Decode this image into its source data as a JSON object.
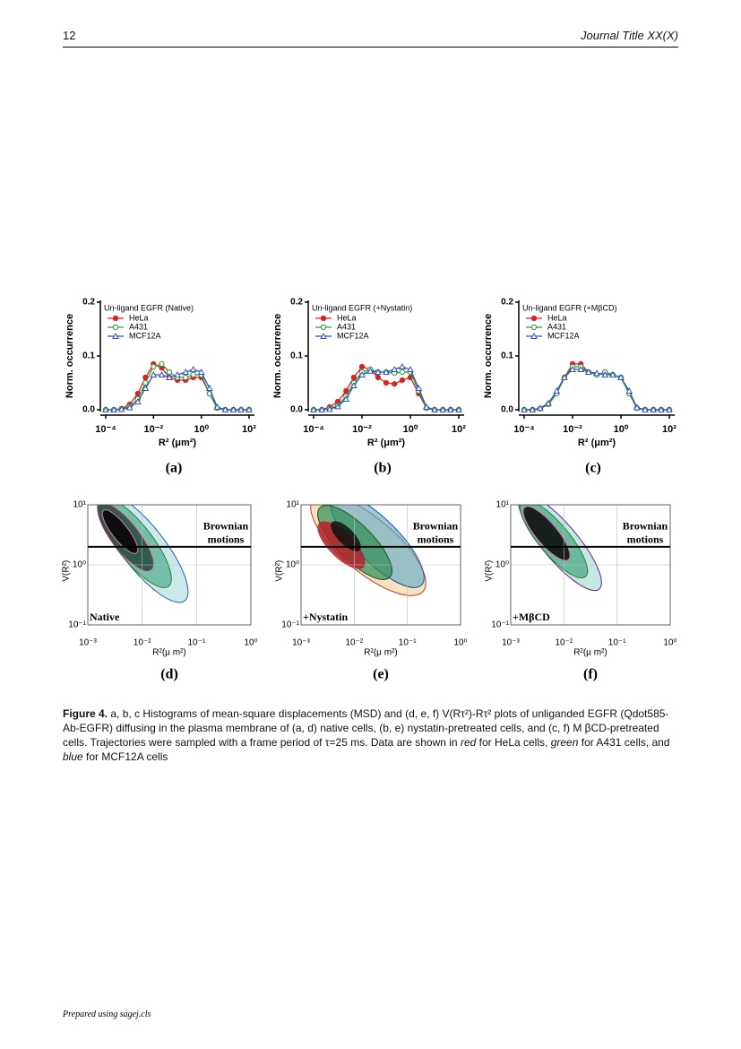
{
  "header": {
    "page": "12",
    "journal": "Journal Title XX(X)"
  },
  "chart_data": [
    {
      "type": "line",
      "panel_label": "(a)",
      "title": "Un-ligand EGFR (Native)",
      "xlabel": "R² (μm²)",
      "ylabel": "Norm. occurrence",
      "log_x": true,
      "legend": "upper left",
      "x": [
        0.0001,
        0.00022,
        0.00046,
        0.001,
        0.0022,
        0.0046,
        0.01,
        0.022,
        0.046,
        0.1,
        0.22,
        0.46,
        1,
        2.2,
        4.6,
        10,
        22,
        46,
        100
      ],
      "xlim": [
        0.0001,
        100
      ],
      "ylim": [
        0,
        0.2
      ],
      "xticks": [
        {
          "value": 0.0001,
          "label": "10⁻⁴"
        },
        {
          "value": 0.01,
          "label": "10⁻²"
        },
        {
          "value": 1,
          "label": "10⁰"
        },
        {
          "value": 100,
          "label": "10²"
        }
      ],
      "yticks": [
        {
          "value": 0,
          "label": "0.0"
        },
        0.1,
        0.2
      ],
      "series": [
        {
          "name": "HeLa",
          "color": "#e02020",
          "values": [
            0,
            0,
            0.002,
            0.01,
            0.03,
            0.06,
            0.085,
            0.078,
            0.06,
            0.055,
            0.055,
            0.06,
            0.06,
            0.03,
            0.003,
            0,
            0,
            0,
            0
          ]
        },
        {
          "name": "A431",
          "color": "#2ca02c",
          "values": [
            0,
            0,
            0.001,
            0.006,
            0.02,
            0.05,
            0.08,
            0.085,
            0.07,
            0.06,
            0.06,
            0.065,
            0.065,
            0.03,
            0.003,
            0,
            0,
            0,
            0
          ]
        },
        {
          "name": "MCF12A",
          "color": "#3050c0",
          "values": [
            0,
            0,
            0.001,
            0.004,
            0.015,
            0.04,
            0.065,
            0.065,
            0.06,
            0.065,
            0.07,
            0.075,
            0.07,
            0.04,
            0.005,
            0,
            0,
            0,
            0
          ]
        }
      ]
    },
    {
      "type": "line",
      "panel_label": "(b)",
      "title": "Un-ligand EGFR (+Nystatin)",
      "xlabel": "R² (μm²)",
      "ylabel": "Norm. occurrence",
      "log_x": true,
      "legend": "upper left",
      "x": [
        0.0001,
        0.00022,
        0.00046,
        0.001,
        0.0022,
        0.0046,
        0.01,
        0.022,
        0.046,
        0.1,
        0.22,
        0.46,
        1,
        2.2,
        4.6,
        10,
        22,
        46,
        100
      ],
      "xlim": [
        0.0001,
        100
      ],
      "ylim": [
        0,
        0.2
      ],
      "xticks": [
        {
          "value": 0.0001,
          "label": "10⁻⁴"
        },
        {
          "value": 0.01,
          "label": "10⁻²"
        },
        {
          "value": 1,
          "label": "10⁰"
        },
        {
          "value": 100,
          "label": "10²"
        }
      ],
      "yticks": [
        {
          "value": 0,
          "label": "0.0"
        },
        0.1,
        0.2
      ],
      "series": [
        {
          "name": "HeLa",
          "color": "#e02020",
          "values": [
            0,
            0,
            0.005,
            0.015,
            0.035,
            0.06,
            0.08,
            0.075,
            0.06,
            0.05,
            0.048,
            0.055,
            0.06,
            0.03,
            0.003,
            0,
            0,
            0,
            0
          ]
        },
        {
          "name": "A431",
          "color": "#2ca02c",
          "values": [
            0,
            0,
            0.002,
            0.008,
            0.025,
            0.05,
            0.07,
            0.075,
            0.07,
            0.07,
            0.068,
            0.07,
            0.07,
            0.035,
            0.003,
            0,
            0,
            0,
            0
          ]
        },
        {
          "name": "MCF12A",
          "color": "#3050c0",
          "values": [
            0,
            0,
            0.001,
            0.006,
            0.02,
            0.045,
            0.065,
            0.072,
            0.07,
            0.07,
            0.075,
            0.08,
            0.075,
            0.04,
            0.005,
            0,
            0,
            0,
            0
          ]
        }
      ]
    },
    {
      "type": "line",
      "panel_label": "(c)",
      "title": "Un-ligand EGFR (+MβCD)",
      "xlabel": "R² (μm²)",
      "ylabel": "Norm. occurrence",
      "log_x": true,
      "legend": "upper left",
      "x": [
        0.0001,
        0.00022,
        0.00046,
        0.001,
        0.0022,
        0.0046,
        0.01,
        0.022,
        0.046,
        0.1,
        0.22,
        0.46,
        1,
        2.2,
        4.6,
        10,
        22,
        46,
        100
      ],
      "xlim": [
        0.0001,
        100
      ],
      "ylim": [
        0,
        0.2
      ],
      "xticks": [
        {
          "value": 0.0001,
          "label": "10⁻⁴"
        },
        {
          "value": 0.01,
          "label": "10⁻²"
        },
        {
          "value": 1,
          "label": "10⁰"
        },
        {
          "value": 100,
          "label": "10²"
        }
      ],
      "yticks": [
        {
          "value": 0,
          "label": "0.0"
        },
        0.1,
        0.2
      ],
      "series": [
        {
          "name": "HeLa",
          "color": "#e02020",
          "values": [
            0,
            0,
            0.002,
            0.01,
            0.03,
            0.06,
            0.085,
            0.085,
            0.07,
            0.065,
            0.07,
            0.065,
            0.06,
            0.03,
            0.003,
            0,
            0,
            0,
            0
          ]
        },
        {
          "name": "A431",
          "color": "#2ca02c",
          "values": [
            0,
            0,
            0.002,
            0.01,
            0.03,
            0.06,
            0.08,
            0.08,
            0.07,
            0.065,
            0.07,
            0.065,
            0.06,
            0.03,
            0.003,
            0,
            0,
            0,
            0
          ]
        },
        {
          "name": "MCF12A",
          "color": "#3050c0",
          "values": [
            0,
            0,
            0.003,
            0.012,
            0.035,
            0.06,
            0.075,
            0.075,
            0.07,
            0.068,
            0.065,
            0.065,
            0.06,
            0.035,
            0.004,
            0,
            0,
            0,
            0
          ]
        }
      ]
    },
    {
      "type": "contour",
      "panel_label": "(d)",
      "condition": "Native",
      "annotation": [
        "Brownian",
        "motions"
      ],
      "xlabel": "R²(μ m²)",
      "ylabel": "V(R²)",
      "log_x": true,
      "log_y": true,
      "grid": true,
      "xlim": [
        0.001,
        1
      ],
      "ylim": [
        0.1,
        10
      ],
      "xticks": [
        {
          "value": 0.001,
          "label": "10⁻³"
        },
        {
          "value": 0.01,
          "label": "10⁻²"
        },
        {
          "value": 0.1,
          "label": "10⁻¹"
        },
        {
          "value": 1,
          "label": "10⁰"
        }
      ],
      "yticks": [
        {
          "value": 10,
          "label": "10¹"
        },
        {
          "value": 1,
          "label": "10⁰"
        },
        {
          "value": 0.1,
          "label": "10⁻¹"
        }
      ]
    },
    {
      "type": "contour",
      "panel_label": "(e)",
      "condition": "+Nystatin",
      "annotation": [
        "Brownian",
        "motions"
      ],
      "xlabel": "R²(μ m²)",
      "ylabel": "V(R²)",
      "log_x": true,
      "log_y": true,
      "grid": true,
      "xlim": [
        0.001,
        1
      ],
      "ylim": [
        0.1,
        10
      ],
      "xticks": [
        {
          "value": 0.001,
          "label": "10⁻³"
        },
        {
          "value": 0.01,
          "label": "10⁻²"
        },
        {
          "value": 0.1,
          "label": "10⁻¹"
        },
        {
          "value": 1,
          "label": "10⁰"
        }
      ],
      "yticks": [
        {
          "value": 10,
          "label": "10¹"
        },
        {
          "value": 1,
          "label": "10⁰"
        },
        {
          "value": 0.1,
          "label": "10⁻¹"
        }
      ]
    },
    {
      "type": "contour",
      "panel_label": "(f)",
      "condition": "+MβCD",
      "annotation": [
        "Brownian",
        "motions"
      ],
      "xlabel": "R²(μ m²)",
      "ylabel": "V(R²)",
      "log_x": true,
      "log_y": true,
      "grid": true,
      "xlim": [
        0.001,
        1
      ],
      "ylim": [
        0.1,
        10
      ],
      "xticks": [
        {
          "value": 0.001,
          "label": "10⁻³"
        },
        {
          "value": 0.01,
          "label": "10⁻²"
        },
        {
          "value": 0.1,
          "label": "10⁻¹"
        },
        {
          "value": 1,
          "label": "10⁰"
        }
      ],
      "yticks": [
        {
          "value": 10,
          "label": "10¹"
        },
        {
          "value": 1,
          "label": "10⁰"
        },
        {
          "value": 0.1,
          "label": "10⁻¹"
        }
      ]
    }
  ],
  "caption": [
    "Figure 4.",
    "a, b, c Histograms of mean-square displacements (MSD) and (d, e, f) V(Rτ²)-Rτ² plots of unliganded EGFR (Qdot585-Ab-EGFR) diffusing in the plasma membrane of (a, d) native cells, (b, e) nystatin-pretreated cells, and (c, f) M βCD-pretreated cells. Trajectories were sampled with a frame period of τ=25 ms. Data are shown in",
    "red",
    "for HeLa cells,",
    "green",
    "for A431 cells, and",
    "blue",
    "for MCF12A cells"
  ],
  "footer": "Prepared using sagej.cls"
}
